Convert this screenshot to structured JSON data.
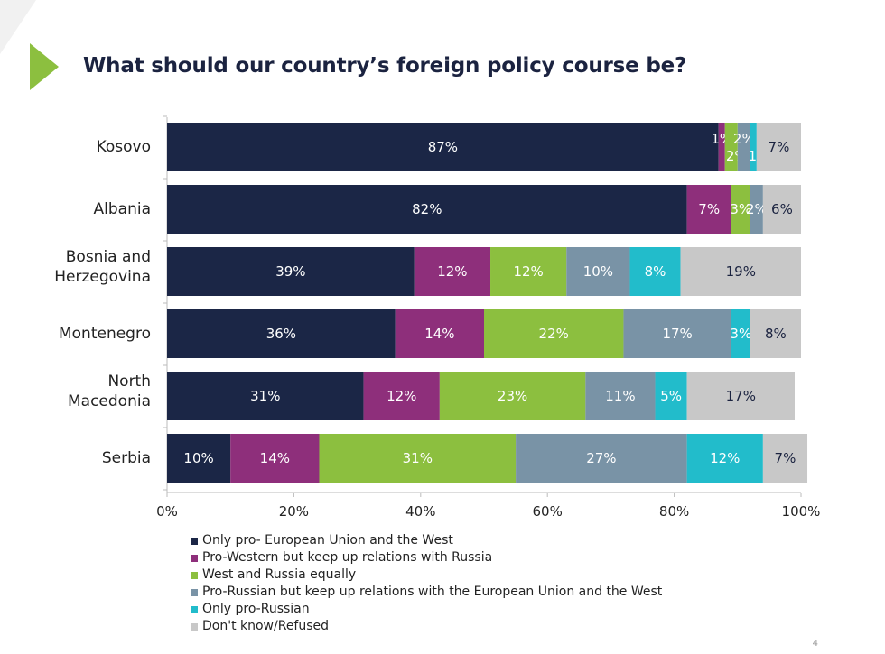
{
  "title": "What should our country’s foreign policy course be?",
  "page_number": "4",
  "chart_data": {
    "type": "bar",
    "orientation": "horizontal",
    "stacked": true,
    "categories": [
      "Kosovo",
      "Albania",
      "Bosnia and Herzegovina",
      "Montenegro",
      "North Macedonia",
      "Serbia"
    ],
    "series": [
      {
        "name": "Only pro- European Union and the West",
        "color": "#1b2646",
        "values": [
          87,
          82,
          39,
          36,
          31,
          10
        ]
      },
      {
        "name": "Pro-Western but keep up relations with Russia",
        "color": "#8e2f7b",
        "values": [
          1,
          7,
          12,
          14,
          12,
          14
        ]
      },
      {
        "name": "West and Russia equally",
        "color": "#8cbf3f",
        "values": [
          2,
          3,
          12,
          22,
          23,
          31
        ]
      },
      {
        "name": "Pro-Russian but keep up relations with the European Union and the West",
        "color": "#7993a6",
        "values": [
          2,
          2,
          10,
          17,
          11,
          27
        ]
      },
      {
        "name": "Only pro-Russian",
        "color": "#22bccb",
        "values": [
          1,
          0,
          8,
          3,
          5,
          12
        ]
      },
      {
        "name": "Don't know/Refused",
        "color": "#c8c8c8",
        "values": [
          7,
          6,
          19,
          8,
          17,
          7
        ]
      }
    ],
    "xlim": [
      0,
      100
    ],
    "xticks": [
      "0%",
      "20%",
      "40%",
      "60%",
      "80%",
      "100%"
    ],
    "xtick_values": [
      0,
      20,
      40,
      60,
      80,
      100
    ],
    "value_suffix": "%",
    "grid": false,
    "legend_position": "bottom"
  }
}
